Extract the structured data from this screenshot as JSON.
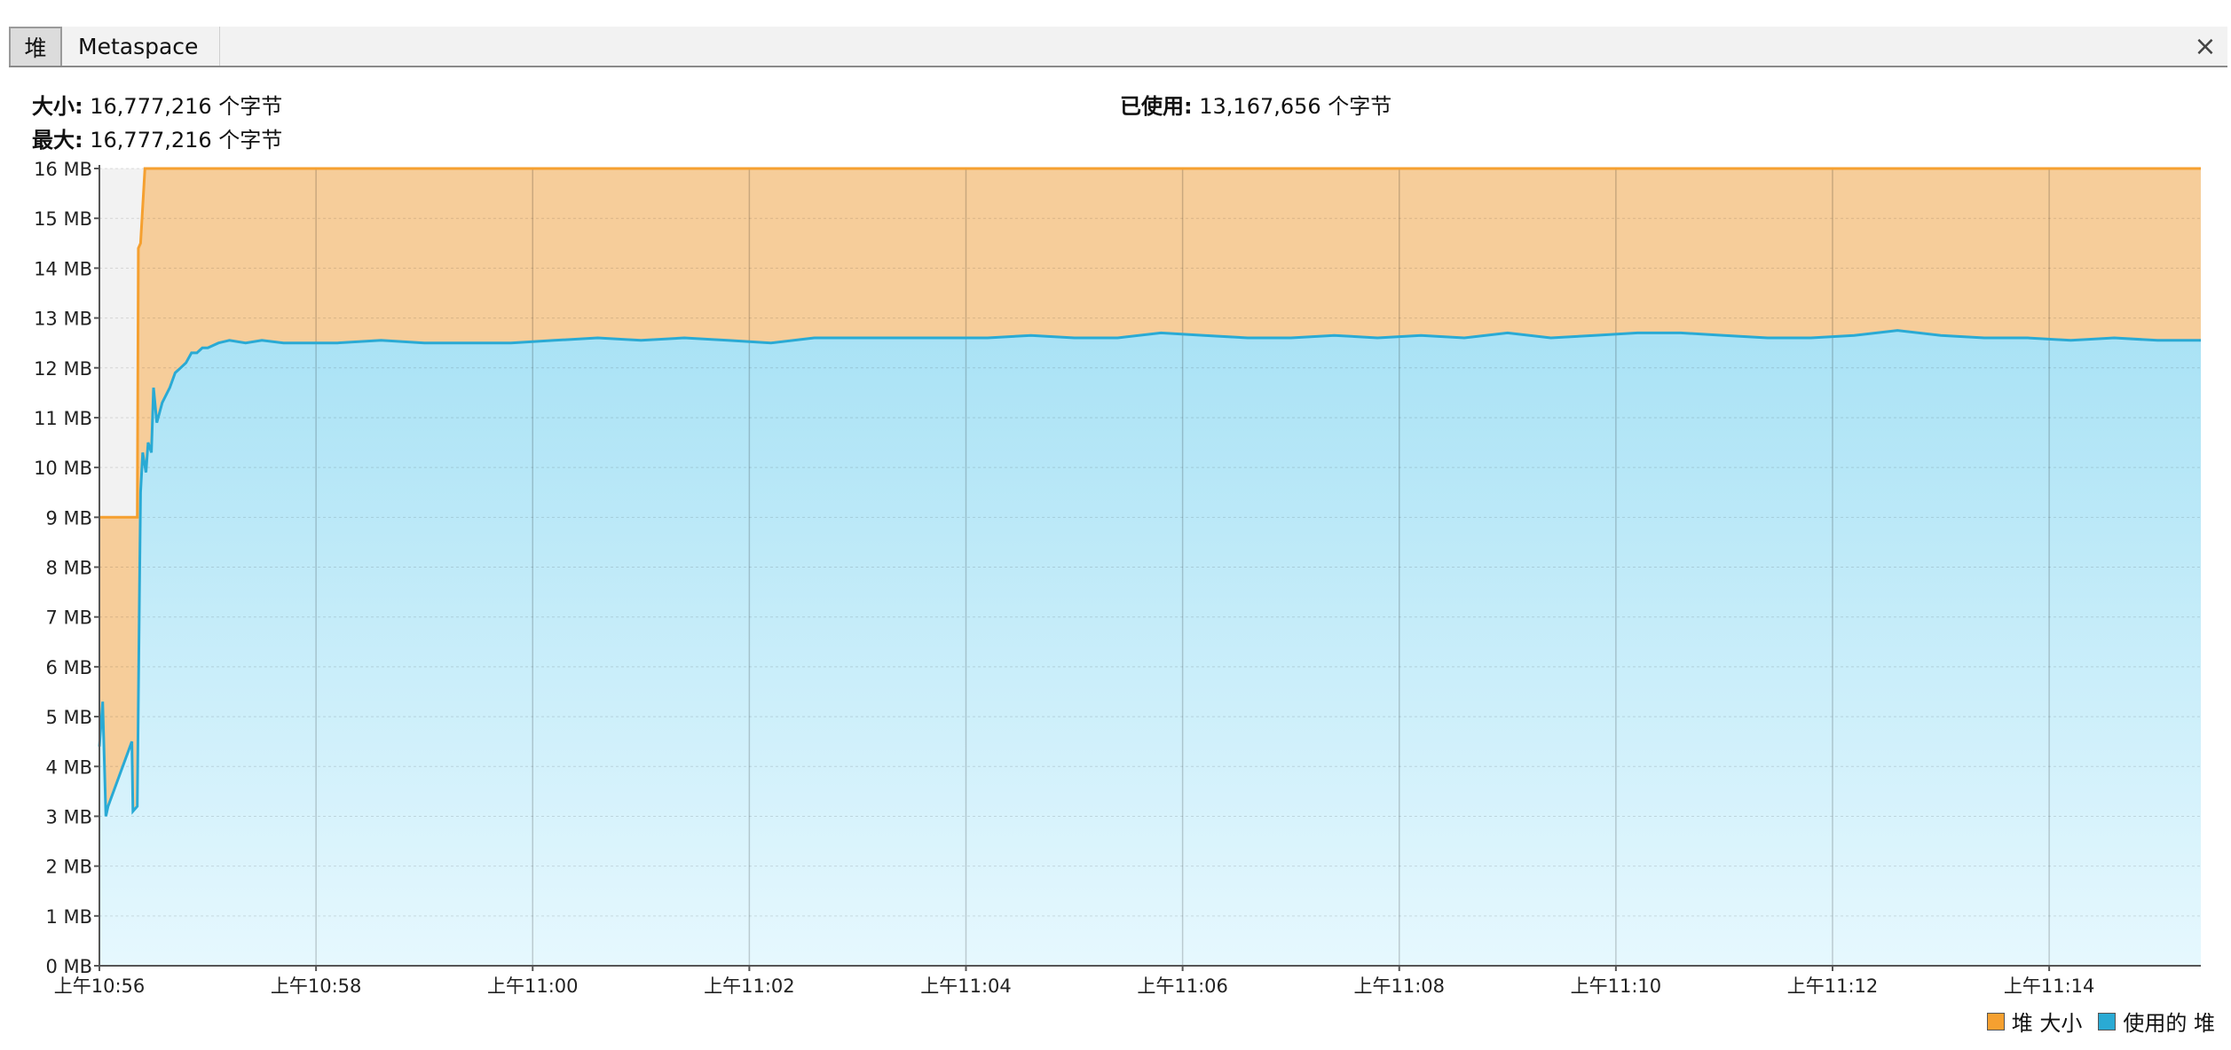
{
  "tabs": [
    {
      "label": "堆",
      "active": true
    },
    {
      "label": "Metaspace",
      "active": false
    }
  ],
  "close_glyph": "×",
  "info": {
    "size_key": "大小:",
    "size_value": "16,777,216 个字节",
    "max_key": "最大:",
    "max_value": "16,777,216 个字节",
    "used_key": "已使用:",
    "used_value": "13,167,656 个字节"
  },
  "legend": {
    "heap_size": "堆 大小",
    "used_heap": "使用的 堆"
  },
  "colors": {
    "heap_size_line": "#f5a030",
    "heap_size_fill": "#f6cd9a",
    "used_line": "#2aaad4",
    "used_fill_top": "#a9e2f5",
    "used_fill_bottom": "#e6f8fe",
    "plot_bg": "#f2f2f2"
  },
  "chart_data": {
    "type": "area",
    "xlabel": "",
    "ylabel": "",
    "y_ticks": [
      "0 MB",
      "1 MB",
      "2 MB",
      "3 MB",
      "4 MB",
      "5 MB",
      "6 MB",
      "7 MB",
      "8 MB",
      "9 MB",
      "10 MB",
      "11 MB",
      "12 MB",
      "13 MB",
      "14 MB",
      "15 MB",
      "16 MB"
    ],
    "ylim": [
      0,
      16
    ],
    "x_ticks": [
      "上午10:56",
      "上午10:58",
      "上午11:00",
      "上午11:02",
      "上午11:04",
      "上午11:06",
      "上午11:08",
      "上午11:10",
      "上午11:12",
      "上午11:14"
    ],
    "x_tick_minutes": [
      0,
      2,
      4,
      6,
      8,
      10,
      12,
      14,
      16,
      18
    ],
    "xlim_minutes": [
      0,
      19.4
    ],
    "grid": true,
    "legend_position": "bottom-right",
    "series": [
      {
        "name": "堆 大小",
        "x": [
          0,
          0.35,
          0.36,
          0.38,
          0.42,
          0.45,
          19.4
        ],
        "y": [
          9.0,
          9.0,
          14.4,
          14.5,
          16.0,
          16.0,
          16.0
        ]
      },
      {
        "name": "使用的 堆",
        "x": [
          0,
          0.03,
          0.06,
          0.08,
          0.3,
          0.31,
          0.35,
          0.37,
          0.38,
          0.4,
          0.43,
          0.45,
          0.48,
          0.5,
          0.53,
          0.58,
          0.65,
          0.7,
          0.75,
          0.8,
          0.85,
          0.9,
          0.95,
          1.0,
          1.1,
          1.2,
          1.35,
          1.5,
          1.7,
          1.9,
          2.2,
          2.6,
          3.0,
          3.4,
          3.8,
          4.2,
          4.6,
          5.0,
          5.4,
          5.8,
          6.2,
          6.6,
          7.0,
          7.4,
          7.8,
          8.2,
          8.6,
          9.0,
          9.4,
          9.8,
          10.2,
          10.6,
          11.0,
          11.4,
          11.8,
          12.2,
          12.6,
          13.0,
          13.4,
          13.8,
          14.2,
          14.6,
          15.0,
          15.4,
          15.8,
          16.2,
          16.6,
          17.0,
          17.4,
          17.8,
          18.2,
          18.6,
          19.0,
          19.4
        ],
        "y": [
          4.4,
          5.3,
          3.0,
          3.2,
          4.5,
          3.1,
          3.2,
          7.6,
          9.5,
          10.3,
          9.9,
          10.5,
          10.3,
          11.6,
          10.9,
          11.3,
          11.6,
          11.9,
          12.0,
          12.1,
          12.3,
          12.3,
          12.4,
          12.4,
          12.5,
          12.55,
          12.5,
          12.55,
          12.5,
          12.5,
          12.5,
          12.55,
          12.5,
          12.5,
          12.5,
          12.55,
          12.6,
          12.55,
          12.6,
          12.55,
          12.5,
          12.6,
          12.6,
          12.6,
          12.6,
          12.6,
          12.65,
          12.6,
          12.6,
          12.7,
          12.65,
          12.6,
          12.6,
          12.65,
          12.6,
          12.65,
          12.6,
          12.7,
          12.6,
          12.65,
          12.7,
          12.7,
          12.65,
          12.6,
          12.6,
          12.65,
          12.75,
          12.65,
          12.6,
          12.6,
          12.55,
          12.6,
          12.55,
          12.55
        ]
      }
    ]
  }
}
